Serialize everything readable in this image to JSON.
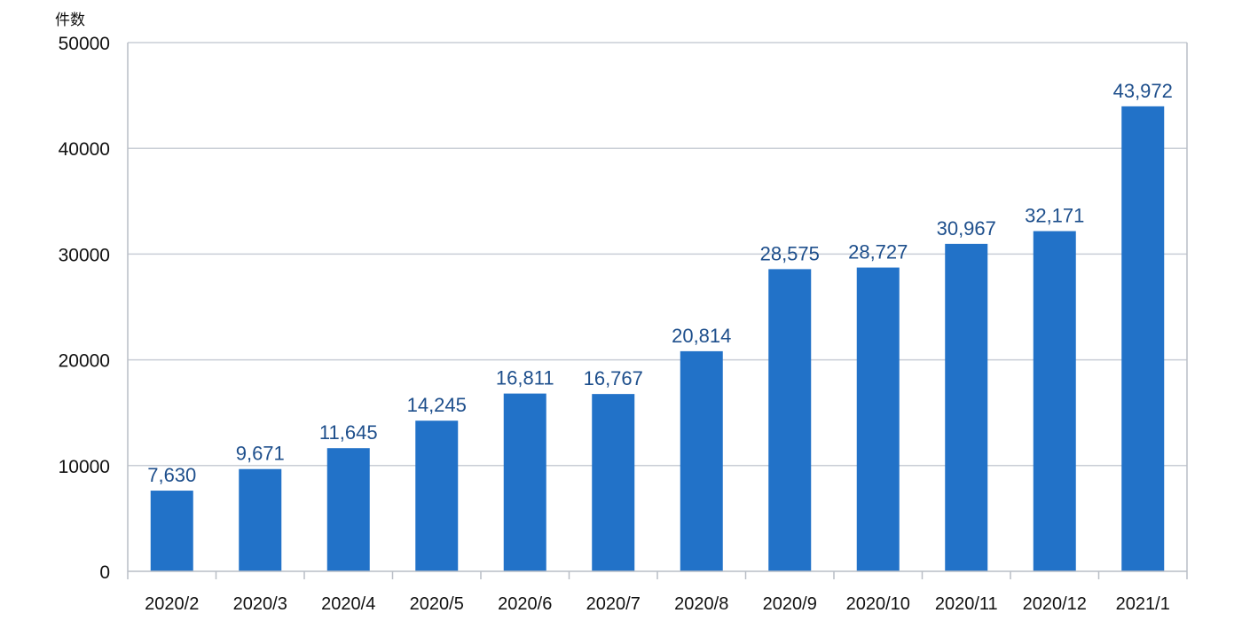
{
  "chart_data": {
    "type": "bar",
    "unit_label": "件数",
    "categories": [
      "2020/2",
      "2020/3",
      "2020/4",
      "2020/5",
      "2020/6",
      "2020/7",
      "2020/8",
      "2020/9",
      "2020/10",
      "2020/11",
      "2020/12",
      "2021/1"
    ],
    "values": [
      7630,
      9671,
      11645,
      14245,
      16811,
      16767,
      20814,
      28575,
      28727,
      30967,
      32171,
      43972
    ],
    "value_labels": [
      "7,630",
      "9,671",
      "11,645",
      "14,245",
      "16,811",
      "16,767",
      "20,814",
      "28,575",
      "28,727",
      "30,967",
      "32,171",
      "43,972"
    ],
    "ylim": [
      0,
      50000
    ],
    "yticks": [
      0,
      10000,
      20000,
      30000,
      40000,
      50000
    ],
    "grid": true,
    "legend": "none",
    "bar_color": "#2272c8",
    "label_color": "#1e4f8c"
  }
}
